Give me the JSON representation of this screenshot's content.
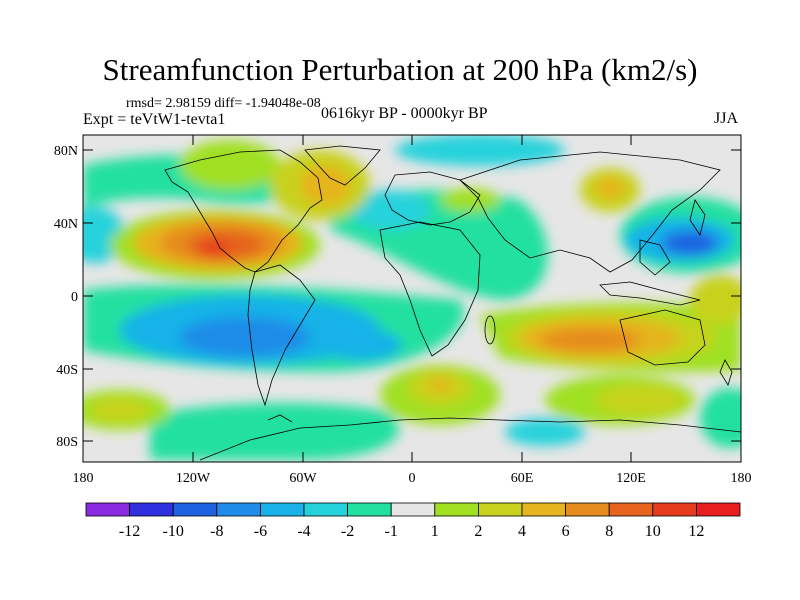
{
  "title": "Streamfunction Perturbation at 200 hPa (km2/s)",
  "stats": "rmsd= 2.98159 diff= -1.94048e-08",
  "experiment": "Expt = teVtW1-tevta1",
  "period": "0616kyr BP - 0000kyr BP",
  "season": "JJA",
  "lat_labels": [
    "80N",
    "40N",
    "0",
    "40S",
    "80S"
  ],
  "lon_labels": [
    "180",
    "120W",
    "60W",
    "0",
    "60E",
    "120E",
    "180"
  ],
  "colorbar": {
    "labels": [
      "-12",
      "-10",
      "-8",
      "-6",
      "-4",
      "-2",
      "-1",
      "1",
      "2",
      "4",
      "6",
      "8",
      "10",
      "12"
    ],
    "colors": [
      "#8a2be2",
      "#3030e0",
      "#1f62e0",
      "#1e8ce8",
      "#19b2e8",
      "#25d2dc",
      "#22e0a0",
      "#e6e6e6",
      "#a0e020",
      "#c8d21e",
      "#e6b41e",
      "#e68c1e",
      "#e6641e",
      "#e63c1e",
      "#e61e1e"
    ]
  }
}
